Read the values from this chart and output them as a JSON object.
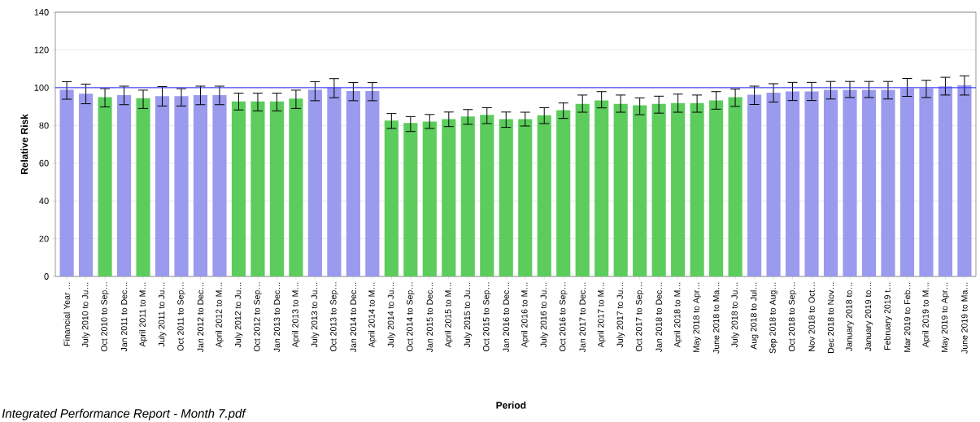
{
  "chart_data": {
    "type": "bar",
    "xlabel": "Period",
    "ylabel": "Relative Risk",
    "annotations": [
      "Integrated Performance Report - Month 7.pdf"
    ],
    "categories": [
      "Financial Year …",
      "July 2010 to Ju…",
      "Oct 2010 to Sep…",
      "Jan 2011 to Dec…",
      "April 2011 to M…",
      "July 2011 to Ju…",
      "Oct 2011 to Sep…",
      "Jan 2012 to Dec…",
      "April 2012 to M…",
      "July 2012 to Ju…",
      "Oct 2012 to Sep…",
      "Jan 2013 to Dec…",
      "April 2013 to M…",
      "July 2013 to Ju…",
      "Oct 2013 to Sep…",
      "Jan 2014 to Dec…",
      "April 2014 to M…",
      "July 2014 to Ju…",
      "Oct 2014 to Sep…",
      "Jan 2015 to Dec…",
      "April 2015 to M…",
      "July 2015 to Ju…",
      "Oct 2015 to Sep…",
      "Jan 2016 to Dec…",
      "April 2016 to M…",
      "July 2016 to Ju…",
      "Oct 2016 to Sep…",
      "Jan 2017 to Dec…",
      "April 2017 to M…",
      "July 2017 to Ju…",
      "Oct 2017 to Sep…",
      "Jan 2018 to Dec…",
      "April 2018 to M…",
      "May 2018 to Apr…",
      "June 2018 to Ma…",
      "July 2018 to Ju…",
      "Aug 2018 to Jul…",
      "Sep 2018 to Aug…",
      "Oct 2018 to Sep…",
      "Nov 2018 to Oct…",
      "Dec 2018 to Nov…",
      "January 2018 to…",
      "January 2019 to…",
      "February 2019 t…",
      "Mar 2019 to Feb…",
      "April 2019 to M…",
      "May 2019 to Apr…",
      "June 2019 to Ma…"
    ],
    "values": [
      99,
      96.8,
      95,
      96.1,
      94.4,
      95.5,
      95.5,
      96.1,
      96.1,
      92.7,
      92.7,
      92.7,
      94.2,
      99,
      100,
      98.2,
      98.2,
      82.6,
      81.3,
      82.1,
      83.4,
      84.8,
      85.6,
      83.4,
      83.4,
      85.4,
      88.1,
      91.4,
      93.3,
      91.4,
      90.7,
      91.4,
      91.9,
      91.9,
      93.3,
      95,
      96.3,
      97.4,
      98,
      98,
      98.9,
      98.9,
      98.9,
      98.9,
      99.7,
      99.7,
      100.7,
      101.3
    ],
    "errors": [
      [
        93.9,
        103.2
      ],
      [
        91.5,
        101.9
      ],
      [
        89.8,
        99.5
      ],
      [
        91,
        100.8
      ],
      [
        89,
        98.7
      ],
      [
        90.3,
        100.6
      ],
      [
        90.3,
        99.5
      ],
      [
        91,
        100.8
      ],
      [
        91,
        100.8
      ],
      [
        88.2,
        97.1
      ],
      [
        87.7,
        97.1
      ],
      [
        87.7,
        97.1
      ],
      [
        89,
        98.7
      ],
      [
        93.1,
        103.2
      ],
      [
        94.7,
        104.8
      ],
      [
        93.1,
        102.7
      ],
      [
        93.1,
        102.7
      ],
      [
        78.4,
        86.3
      ],
      [
        76.8,
        84.7
      ],
      [
        78.4,
        85.8
      ],
      [
        79.4,
        87.1
      ],
      [
        80.6,
        88.4
      ],
      [
        81,
        89.4
      ],
      [
        79,
        87.1
      ],
      [
        79.7,
        87
      ],
      [
        81,
        89.4
      ],
      [
        83.7,
        91.9
      ],
      [
        87,
        96.1
      ],
      [
        89.3,
        97.9
      ],
      [
        87,
        96.1
      ],
      [
        85.7,
        94.6
      ],
      [
        86.5,
        95.5
      ],
      [
        87,
        96.6
      ],
      [
        87,
        96.1
      ],
      [
        88.6,
        97.9
      ],
      [
        90.1,
        99.3
      ],
      [
        91.1,
        100.8
      ],
      [
        92.4,
        102.1
      ],
      [
        93.2,
        102.8
      ],
      [
        93.2,
        102.8
      ],
      [
        94,
        103.3
      ],
      [
        94.8,
        103.3
      ],
      [
        94.8,
        103.3
      ],
      [
        94,
        103.3
      ],
      [
        95.4,
        104.9
      ],
      [
        94.8,
        103.9
      ],
      [
        96.1,
        105.5
      ],
      [
        96.1,
        106.3
      ]
    ],
    "colors": [
      "#9a9aee",
      "#9a9aee",
      "#5ccc5c",
      "#9a9aee",
      "#5ccc5c",
      "#9a9aee",
      "#9a9aee",
      "#9a9aee",
      "#9a9aee",
      "#5ccc5c",
      "#5ccc5c",
      "#5ccc5c",
      "#5ccc5c",
      "#9a9aee",
      "#9a9aee",
      "#9a9aee",
      "#9a9aee",
      "#5ccc5c",
      "#5ccc5c",
      "#5ccc5c",
      "#5ccc5c",
      "#5ccc5c",
      "#5ccc5c",
      "#5ccc5c",
      "#5ccc5c",
      "#5ccc5c",
      "#5ccc5c",
      "#5ccc5c",
      "#5ccc5c",
      "#5ccc5c",
      "#5ccc5c",
      "#5ccc5c",
      "#5ccc5c",
      "#5ccc5c",
      "#5ccc5c",
      "#5ccc5c",
      "#9a9aee",
      "#9a9aee",
      "#9a9aee",
      "#9a9aee",
      "#9a9aee",
      "#9a9aee",
      "#9a9aee",
      "#9a9aee",
      "#9a9aee",
      "#9a9aee",
      "#9a9aee",
      "#9a9aee"
    ],
    "ylim": [
      0,
      140
    ],
    "yticks": [
      0,
      20,
      40,
      60,
      80,
      100,
      120,
      140
    ],
    "grid": "y",
    "ref_lines": [
      {
        "axis": "y",
        "value": 100,
        "color": "#2b2bff"
      }
    ]
  }
}
